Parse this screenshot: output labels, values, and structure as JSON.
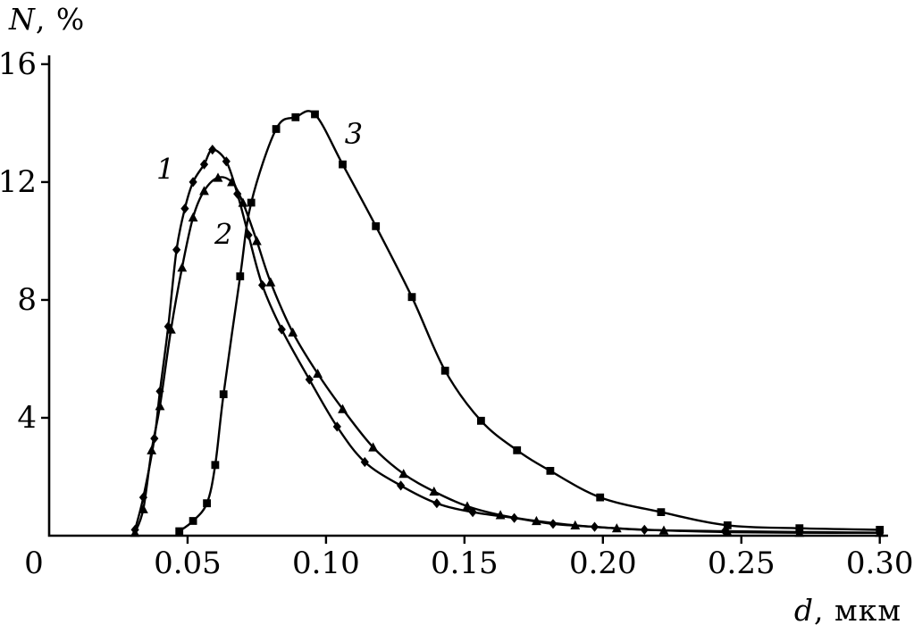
{
  "figure": {
    "background": "#ffffff",
    "line_color": "#000000"
  },
  "chart_data": {
    "type": "line",
    "title": "",
    "xlabel": "d, мкм",
    "ylabel": "N, %",
    "xlabel_parts": {
      "italic": "d",
      "rest": ", мкм"
    },
    "ylabel_parts": {
      "italic": "N",
      "rest": ", %"
    },
    "xlim": [
      0,
      0.303
    ],
    "ylim": [
      0,
      16.3
    ],
    "grid": false,
    "legend_position": "none",
    "xticks": [
      {
        "value": 0,
        "label": "0"
      },
      {
        "value": 0.05,
        "label": "0.05"
      },
      {
        "value": 0.1,
        "label": "0.10"
      },
      {
        "value": 0.15,
        "label": "0.15"
      },
      {
        "value": 0.2,
        "label": "0.20"
      },
      {
        "value": 0.25,
        "label": "0.25"
      },
      {
        "value": 0.3,
        "label": "0.30"
      }
    ],
    "yticks": [
      {
        "value": 4,
        "label": "4"
      },
      {
        "value": 8,
        "label": "8"
      },
      {
        "value": 12,
        "label": "12"
      },
      {
        "value": 16,
        "label": "16"
      }
    ],
    "series": [
      {
        "name": "1",
        "marker": "diamond",
        "color": "#000000",
        "label_at": [
          0.042,
          12.4
        ],
        "points": [
          [
            0.031,
            0.2
          ],
          [
            0.034,
            1.3
          ],
          [
            0.038,
            3.3
          ],
          [
            0.04,
            4.9
          ],
          [
            0.043,
            7.1
          ],
          [
            0.046,
            9.7
          ],
          [
            0.049,
            11.1
          ],
          [
            0.052,
            12.0
          ],
          [
            0.056,
            12.6
          ],
          [
            0.059,
            13.1
          ],
          [
            0.064,
            12.7
          ],
          [
            0.068,
            11.6
          ],
          [
            0.072,
            10.2
          ],
          [
            0.077,
            8.5
          ],
          [
            0.084,
            7.0
          ],
          [
            0.094,
            5.3
          ],
          [
            0.104,
            3.7
          ],
          [
            0.114,
            2.5
          ],
          [
            0.127,
            1.7
          ],
          [
            0.14,
            1.1
          ],
          [
            0.153,
            0.8
          ],
          [
            0.168,
            0.6
          ],
          [
            0.182,
            0.4
          ],
          [
            0.197,
            0.3
          ],
          [
            0.215,
            0.2
          ],
          [
            0.244,
            0.15
          ],
          [
            0.3,
            0.1
          ]
        ]
      },
      {
        "name": "2",
        "marker": "triangle",
        "color": "#000000",
        "label_at": [
          0.063,
          10.2
        ],
        "points": [
          [
            0.031,
            0.1
          ],
          [
            0.034,
            0.9
          ],
          [
            0.037,
            2.9
          ],
          [
            0.04,
            4.4
          ],
          [
            0.044,
            7.0
          ],
          [
            0.048,
            9.1
          ],
          [
            0.052,
            10.8
          ],
          [
            0.056,
            11.7
          ],
          [
            0.061,
            12.15
          ],
          [
            0.066,
            12.0
          ],
          [
            0.07,
            11.3
          ],
          [
            0.075,
            10.0
          ],
          [
            0.08,
            8.6
          ],
          [
            0.088,
            6.9
          ],
          [
            0.097,
            5.5
          ],
          [
            0.106,
            4.3
          ],
          [
            0.117,
            3.0
          ],
          [
            0.128,
            2.1
          ],
          [
            0.139,
            1.5
          ],
          [
            0.151,
            1.0
          ],
          [
            0.163,
            0.7
          ],
          [
            0.176,
            0.5
          ],
          [
            0.19,
            0.35
          ],
          [
            0.205,
            0.25
          ],
          [
            0.222,
            0.18
          ],
          [
            0.245,
            0.12
          ],
          [
            0.271,
            0.1
          ],
          [
            0.3,
            0.1
          ]
        ]
      },
      {
        "name": "3",
        "marker": "square",
        "color": "#000000",
        "label_at": [
          0.11,
          13.6
        ],
        "points": [
          [
            0.047,
            0.15
          ],
          [
            0.052,
            0.5
          ],
          [
            0.057,
            1.1
          ],
          [
            0.06,
            2.4
          ],
          [
            0.063,
            4.8
          ],
          [
            0.069,
            8.8
          ],
          [
            0.073,
            11.3
          ],
          [
            0.082,
            13.8
          ],
          [
            0.089,
            14.2
          ],
          [
            0.096,
            14.3
          ],
          [
            0.106,
            12.6
          ],
          [
            0.118,
            10.5
          ],
          [
            0.131,
            8.1
          ],
          [
            0.143,
            5.6
          ],
          [
            0.156,
            3.9
          ],
          [
            0.169,
            2.9
          ],
          [
            0.181,
            2.2
          ],
          [
            0.199,
            1.3
          ],
          [
            0.221,
            0.8
          ],
          [
            0.245,
            0.35
          ],
          [
            0.271,
            0.25
          ],
          [
            0.3,
            0.2
          ]
        ]
      }
    ]
  }
}
